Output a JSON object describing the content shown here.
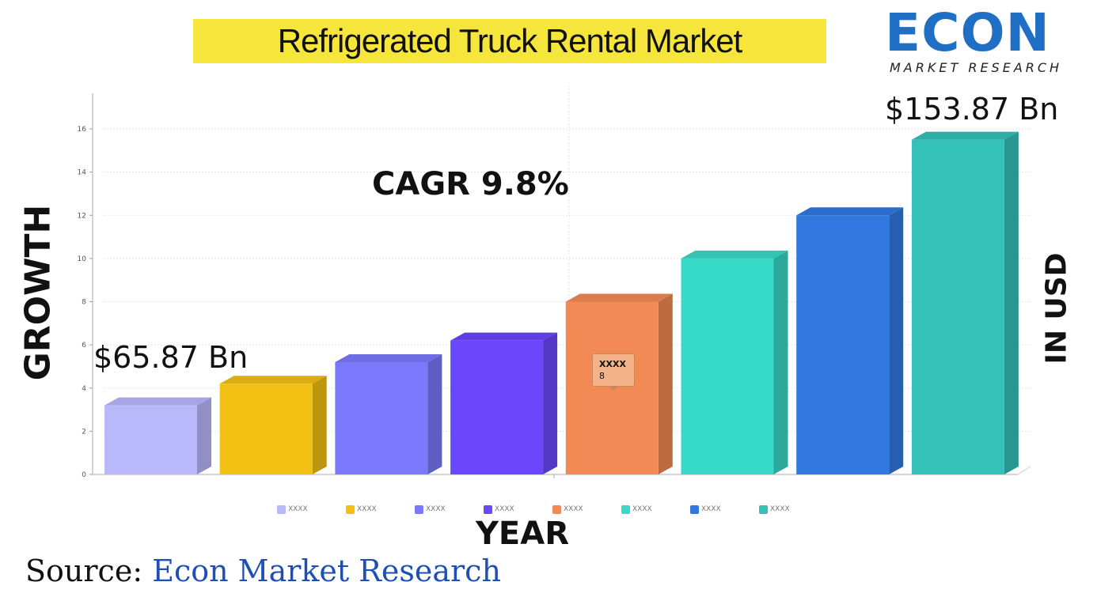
{
  "title": "Refrigerated Truck Rental Market",
  "logo": {
    "word": "ECON",
    "sub": "MARKET RESEARCH"
  },
  "y_axis_left_label": "GROWTH",
  "y_axis_right_label": "IN USD",
  "x_axis_label": "YEAR",
  "cagr_label": "CAGR 9.8%",
  "start_value_label": "$65.87 Bn",
  "end_value_label": "$153.87 Bn",
  "tooltip": {
    "name": "XXXX",
    "value": "8"
  },
  "source": {
    "prefix": "Source: ",
    "name": "Econ Market Research"
  },
  "chart_data": {
    "type": "bar",
    "categories": [
      "XXXX",
      "XXXX",
      "XXXX",
      "XXXX",
      "XXXX",
      "XXXX",
      "XXXX",
      "XXXX"
    ],
    "values": [
      3.2,
      4.2,
      5.2,
      6.2,
      8,
      10,
      12,
      15.5
    ],
    "colors": [
      "#b8b8fb",
      "#f2c012",
      "#7a79fb",
      "#6a46fd",
      "#f28a55",
      "#37d9c7",
      "#3179e1",
      "#34c1b8"
    ],
    "ylim": [
      0,
      18
    ],
    "yticks": [
      0,
      2,
      4,
      6,
      8,
      10,
      12,
      14,
      16
    ],
    "grid": true,
    "legend": "bottom"
  }
}
